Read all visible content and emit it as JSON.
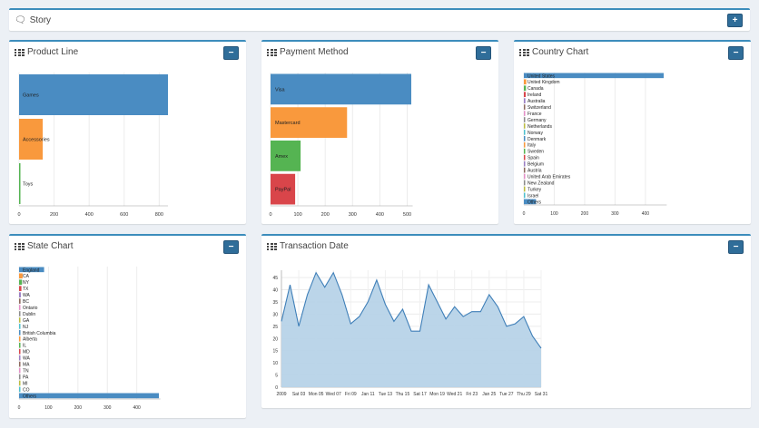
{
  "story": {
    "title": "Story",
    "button": "+"
  },
  "product_line": {
    "title": "Product Line",
    "button": "−",
    "chart_data": {
      "type": "bar",
      "orientation": "horizontal",
      "categories": [
        "Games",
        "Accessories",
        "Toys"
      ],
      "values": [
        850,
        135,
        5
      ],
      "colors": [
        "#4a8cc2",
        "#f9993d",
        "#55b452"
      ],
      "xticks": [
        "0",
        "200",
        "400",
        "600",
        "800"
      ],
      "xlim": [
        0,
        850
      ]
    }
  },
  "payment_method": {
    "title": "Payment Method",
    "button": "−",
    "chart_data": {
      "type": "bar",
      "orientation": "horizontal",
      "categories": [
        "Visa",
        "Mastercard",
        "Amex",
        "PayPal"
      ],
      "values": [
        515,
        280,
        110,
        90
      ],
      "colors": [
        "#4a8cc2",
        "#f9993d",
        "#55b452",
        "#d9454a"
      ],
      "xticks": [
        "0",
        "100",
        "200",
        "300",
        "400",
        "500"
      ],
      "xlim": [
        0,
        520
      ]
    }
  },
  "country_chart": {
    "title": "Country Chart",
    "button": "−",
    "chart_data": {
      "type": "bar",
      "orientation": "horizontal",
      "categories": [
        "United States",
        "United Kingdom",
        "Canada",
        "Ireland",
        "Australia",
        "Switzerland",
        "France",
        "Germany",
        "Netherlands",
        "Norway",
        "Denmark",
        "Italy",
        "Sweden",
        "Spain",
        "Belgium",
        "Austria",
        "United Arab Emirates",
        "New Zealand",
        "Turkey",
        "Israel",
        "Others"
      ],
      "values": [
        460,
        8,
        7,
        6,
        5,
        4,
        3,
        3,
        3,
        3,
        3,
        2,
        2,
        2,
        2,
        2,
        1,
        1,
        1,
        1,
        40
      ],
      "colors": [
        "#4a8cc2",
        "#f9993d",
        "#55b452",
        "#d9454a",
        "#9b7fc4",
        "#8e6a5d",
        "#e58fc8",
        "#8c8c8c",
        "#bdbd3f",
        "#4cc0cf",
        "#4a8cc2",
        "#f9993d",
        "#55b452",
        "#d9454a",
        "#9b7fc4",
        "#8e6a5d",
        "#e58fc8",
        "#8c8c8c",
        "#bdbd3f",
        "#4cc0cf",
        "#4a8cc2"
      ],
      "xticks": [
        "0",
        "100",
        "200",
        "300",
        "400"
      ],
      "xlim": [
        0,
        470
      ]
    }
  },
  "state_chart": {
    "title": "State Chart",
    "button": "−",
    "chart_data": {
      "type": "bar",
      "orientation": "horizontal",
      "categories": [
        "England",
        "CA",
        "NY",
        "TX",
        "WA",
        "BC",
        "Ontario",
        "Dublin",
        "GA",
        "NJ",
        "British Columbia",
        "Alberta",
        "IL",
        "MD",
        "WA",
        "MA",
        "TN",
        "PA",
        "MI",
        "CO",
        "Others"
      ],
      "values": [
        85,
        12,
        10,
        8,
        6,
        5,
        4,
        4,
        4,
        3,
        3,
        3,
        3,
        2,
        2,
        2,
        2,
        2,
        2,
        2,
        475
      ],
      "colors": [
        "#4a8cc2",
        "#f9993d",
        "#55b452",
        "#d9454a",
        "#9b7fc4",
        "#8e6a5d",
        "#e58fc8",
        "#8c8c8c",
        "#bdbd3f",
        "#4cc0cf",
        "#4a8cc2",
        "#f9993d",
        "#55b452",
        "#d9454a",
        "#9b7fc4",
        "#8e6a5d",
        "#e58fc8",
        "#8c8c8c",
        "#bdbd3f",
        "#4cc0cf",
        "#4a8cc2"
      ],
      "xticks": [
        "0",
        "100",
        "200",
        "300",
        "400"
      ],
      "xlim": [
        0,
        480
      ]
    }
  },
  "transaction_date": {
    "title": "Transaction Date",
    "button": "−",
    "chart_data": {
      "type": "area",
      "xticks": [
        "2009",
        "Sat 03",
        "Mon 05",
        "Wed 07",
        "Fri 09",
        "Jan 11",
        "Tue 13",
        "Thu 15",
        "Sat 17",
        "Mon 19",
        "Wed 21",
        "Fri 23",
        "Jan 25",
        "Tue 27",
        "Thu 29",
        "Sat 31"
      ],
      "yticks": [
        "0",
        "5",
        "10",
        "15",
        "20",
        "25",
        "30",
        "35",
        "40",
        "45"
      ],
      "ylim": [
        0,
        48
      ],
      "values": [
        27,
        42,
        25,
        38,
        47,
        41,
        47,
        38,
        26,
        29,
        35,
        44,
        34,
        27,
        32,
        23,
        23,
        42,
        35,
        28,
        33,
        29,
        31,
        31,
        38,
        33,
        25,
        26,
        29,
        21,
        16
      ],
      "color": "#3f7fb8",
      "fill": "#b7d3e8"
    }
  }
}
